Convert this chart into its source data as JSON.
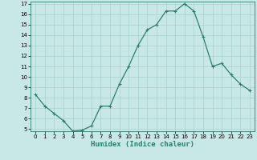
{
  "xlabel": "Humidex (Indice chaleur)",
  "ylabel": "",
  "x_values": [
    0,
    1,
    2,
    3,
    4,
    5,
    6,
    7,
    8,
    9,
    10,
    11,
    12,
    13,
    14,
    15,
    16,
    17,
    18,
    19,
    20,
    21,
    22,
    23
  ],
  "y_values": [
    8.3,
    7.2,
    6.5,
    5.8,
    4.8,
    4.9,
    5.3,
    7.2,
    7.2,
    9.3,
    11.0,
    13.0,
    14.5,
    15.0,
    16.3,
    16.3,
    17.0,
    16.3,
    13.8,
    11.0,
    11.3,
    10.2,
    9.3,
    8.7
  ],
  "line_color": "#2d7d6e",
  "marker_color": "#2d7d6e",
  "bg_color": "#c8e8e8",
  "grid_color": "#a8d0d0",
  "ylim": [
    5,
    17
  ],
  "xlim": [
    -0.5,
    23.5
  ],
  "yticks": [
    5,
    6,
    7,
    8,
    9,
    10,
    11,
    12,
    13,
    14,
    15,
    16,
    17
  ],
  "xticks": [
    0,
    1,
    2,
    3,
    4,
    5,
    6,
    7,
    8,
    9,
    10,
    11,
    12,
    13,
    14,
    15,
    16,
    17,
    18,
    19,
    20,
    21,
    22,
    23
  ],
  "tick_fontsize": 5.0,
  "xlabel_fontsize": 6.5,
  "marker_size": 3.0,
  "line_width": 0.9
}
